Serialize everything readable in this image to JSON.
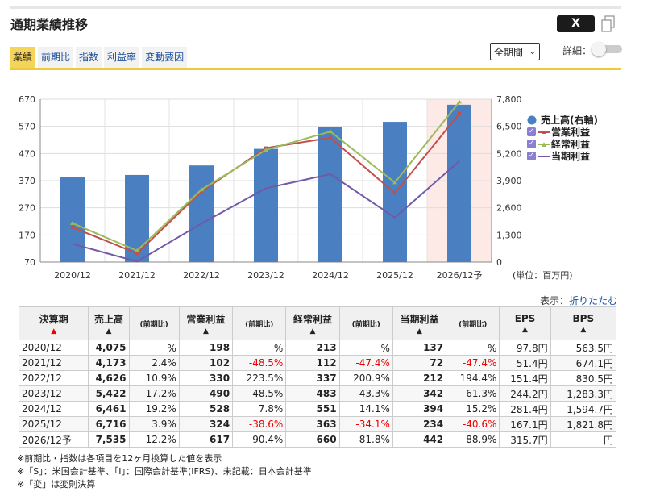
{
  "header": {
    "title": "通期業績推移",
    "x_label": "X"
  },
  "tabs": [
    "業績",
    "前期比",
    "指数",
    "利益率",
    "変動要因"
  ],
  "controls": {
    "period": "全期間",
    "detail_label": "詳細："
  },
  "chart_data": {
    "type": "bar+line",
    "categories": [
      "2020/12",
      "2021/12",
      "2022/12",
      "2023/12",
      "2024/12",
      "2025/12",
      "2026/12予"
    ],
    "bar_series": {
      "name": "売上高(右軸)",
      "values": [
        4075,
        4173,
        4626,
        5422,
        6461,
        6716,
        7535
      ],
      "color": "#4a7fc1"
    },
    "line_series": [
      {
        "name": "営業利益",
        "values": [
          198,
          102,
          330,
          490,
          528,
          324,
          617
        ],
        "color": "#c0504d"
      },
      {
        "name": "経常利益",
        "values": [
          213,
          112,
          337,
          483,
          551,
          363,
          660
        ],
        "color": "#9bbb59"
      },
      {
        "name": "当期利益",
        "values": [
          137,
          72,
          212,
          342,
          394,
          234,
          442
        ],
        "color": "#7159a5"
      }
    ],
    "left_axis": {
      "min": 70,
      "max": 670,
      "ticks": [
        "670",
        "570",
        "470",
        "370",
        "270",
        "170",
        "70"
      ]
    },
    "right_axis": {
      "min": 0,
      "max": 7800,
      "ticks": [
        "7,800",
        "6,500",
        "5,200",
        "3,900",
        "2,600",
        "1,300",
        "0"
      ]
    },
    "unit": "(単位：百万円)",
    "forecast_highlight_index": 6
  },
  "display": {
    "label": "表示：",
    "link": "折りたたむ"
  },
  "table": {
    "headers": {
      "period": "決算期",
      "sales": "売上高",
      "yoy": "(前期比)",
      "op": "営業利益",
      "ord": "経常利益",
      "net": "当期利益",
      "eps": "EPS",
      "bps": "BPS",
      "sort_up": "▲"
    },
    "rows": [
      [
        "2020/12",
        "4,075",
        "－%",
        "198",
        "－%",
        "213",
        "－%",
        "137",
        "－%",
        "97.8円",
        "563.5円"
      ],
      [
        "2021/12",
        "4,173",
        "2.4%",
        "102",
        "-48.5%",
        "112",
        "-47.4%",
        "72",
        "-47.4%",
        "51.4円",
        "674.1円"
      ],
      [
        "2022/12",
        "4,626",
        "10.9%",
        "330",
        "223.5%",
        "337",
        "200.9%",
        "212",
        "194.4%",
        "151.4円",
        "830.5円"
      ],
      [
        "2023/12",
        "5,422",
        "17.2%",
        "490",
        "48.5%",
        "483",
        "43.3%",
        "342",
        "61.3%",
        "244.2円",
        "1,283.3円"
      ],
      [
        "2024/12",
        "6,461",
        "19.2%",
        "528",
        "7.8%",
        "551",
        "14.1%",
        "394",
        "15.2%",
        "281.4円",
        "1,594.7円"
      ],
      [
        "2025/12",
        "6,716",
        "3.9%",
        "324",
        "-38.6%",
        "363",
        "-34.1%",
        "234",
        "-40.6%",
        "167.1円",
        "1,821.8円"
      ],
      [
        "2026/12予",
        "7,535",
        "12.2%",
        "617",
        "90.4%",
        "660",
        "81.8%",
        "442",
        "88.9%",
        "315.7円",
        "－円"
      ]
    ]
  },
  "notes": [
    "※前期比・指数は各項目を12ヶ月換算した値を表示",
    "※「S」：米国会計基準、「I」：国際会計基準(IFRS)、未記載：日本会計基準",
    "※「変」は変則決算"
  ]
}
